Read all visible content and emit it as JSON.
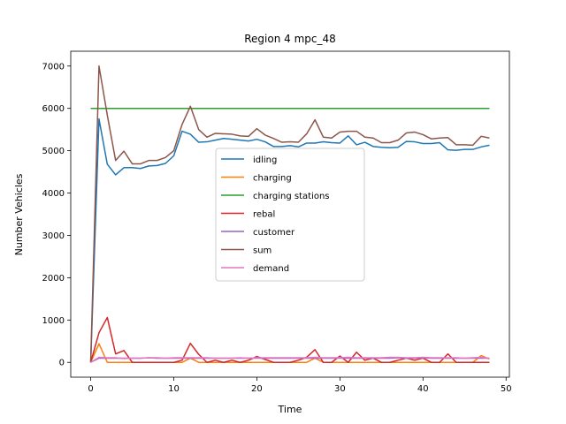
{
  "chart_data": {
    "type": "line",
    "title": "Region 4 mpc_48",
    "xlabel": "Time",
    "ylabel": "Number Vehicles",
    "xlim": [
      -2.4,
      50.4
    ],
    "ylim": [
      -350,
      7350
    ],
    "xticks": [
      0,
      10,
      20,
      30,
      40,
      50
    ],
    "yticks": [
      0,
      1000,
      2000,
      3000,
      4000,
      5000,
      6000,
      7000
    ],
    "grid": false,
    "legend_placement": "center",
    "x": [
      0,
      1,
      2,
      3,
      4,
      5,
      6,
      7,
      8,
      9,
      10,
      11,
      12,
      13,
      14,
      15,
      16,
      17,
      18,
      19,
      20,
      21,
      22,
      23,
      24,
      25,
      26,
      27,
      28,
      29,
      30,
      31,
      32,
      33,
      34,
      35,
      36,
      37,
      38,
      39,
      40,
      41,
      42,
      43,
      44,
      45,
      46,
      47,
      48
    ],
    "series": [
      {
        "name": "idling",
        "color": "#1f77b4",
        "values": [
          0,
          5750,
          4680,
          4430,
          4600,
          4600,
          4580,
          4640,
          4650,
          4700,
          4880,
          5460,
          5390,
          5200,
          5210,
          5250,
          5290,
          5270,
          5250,
          5230,
          5270,
          5210,
          5100,
          5100,
          5120,
          5090,
          5180,
          5180,
          5210,
          5190,
          5180,
          5350,
          5140,
          5200,
          5100,
          5080,
          5070,
          5080,
          5220,
          5210,
          5170,
          5170,
          5190,
          5020,
          5010,
          5030,
          5030,
          5090,
          5130
        ]
      },
      {
        "name": "charging",
        "color": "#ff7f0e",
        "values": [
          0,
          440,
          0,
          0,
          0,
          0,
          0,
          0,
          0,
          0,
          0,
          0,
          100,
          0,
          0,
          0,
          0,
          0,
          0,
          0,
          0,
          0,
          0,
          0,
          0,
          0,
          0,
          100,
          0,
          0,
          0,
          0,
          0,
          0,
          0,
          0,
          0,
          0,
          0,
          0,
          0,
          0,
          0,
          0,
          0,
          0,
          0,
          160,
          80
        ]
      },
      {
        "name": "charging stations",
        "color": "#2ca02c",
        "values": [
          6000,
          6000,
          6000,
          6000,
          6000,
          6000,
          6000,
          6000,
          6000,
          6000,
          6000,
          6000,
          6000,
          6000,
          6000,
          6000,
          6000,
          6000,
          6000,
          6000,
          6000,
          6000,
          6000,
          6000,
          6000,
          6000,
          6000,
          6000,
          6000,
          6000,
          6000,
          6000,
          6000,
          6000,
          6000,
          6000,
          6000,
          6000,
          6000,
          6000,
          6000,
          6000,
          6000,
          6000,
          6000,
          6000,
          6000,
          6000,
          6000
        ]
      },
      {
        "name": "rebal",
        "color": "#d62728",
        "values": [
          0,
          700,
          1060,
          200,
          280,
          0,
          0,
          0,
          0,
          0,
          0,
          50,
          450,
          190,
          0,
          50,
          0,
          50,
          0,
          50,
          140,
          70,
          0,
          0,
          0,
          50,
          120,
          300,
          0,
          0,
          150,
          0,
          240,
          50,
          100,
          0,
          0,
          50,
          100,
          50,
          100,
          0,
          0,
          200,
          0,
          0,
          0,
          0,
          0
        ]
      },
      {
        "name": "customer",
        "color": "#9467bd",
        "values": [
          0,
          100,
          100,
          100,
          100,
          100,
          100,
          110,
          100,
          100,
          100,
          100,
          100,
          100,
          100,
          100,
          100,
          100,
          100,
          100,
          100,
          100,
          100,
          100,
          100,
          100,
          100,
          100,
          100,
          100,
          100,
          100,
          100,
          100,
          100,
          100,
          100,
          110,
          100,
          100,
          110,
          100,
          100,
          100,
          100,
          100,
          100,
          100,
          100
        ]
      },
      {
        "name": "sum",
        "color": "#8c564b",
        "values": [
          0,
          7000,
          5840,
          4770,
          4990,
          4690,
          4690,
          4770,
          4770,
          4840,
          5000,
          5620,
          6050,
          5500,
          5320,
          5410,
          5400,
          5390,
          5350,
          5340,
          5520,
          5370,
          5290,
          5200,
          5210,
          5200,
          5400,
          5730,
          5320,
          5300,
          5440,
          5460,
          5460,
          5320,
          5300,
          5190,
          5190,
          5250,
          5420,
          5440,
          5380,
          5280,
          5300,
          5310,
          5140,
          5140,
          5130,
          5340,
          5300
        ]
      },
      {
        "name": "demand",
        "color": "#e377c2",
        "values": [
          0,
          120,
          110,
          110,
          90,
          100,
          100,
          110,
          110,
          100,
          110,
          110,
          110,
          110,
          110,
          100,
          100,
          100,
          110,
          100,
          110,
          110,
          110,
          110,
          110,
          110,
          110,
          120,
          110,
          110,
          110,
          120,
          110,
          110,
          110,
          110,
          120,
          120,
          110,
          110,
          120,
          110,
          110,
          110,
          110,
          100,
          110,
          120,
          90
        ]
      }
    ]
  }
}
